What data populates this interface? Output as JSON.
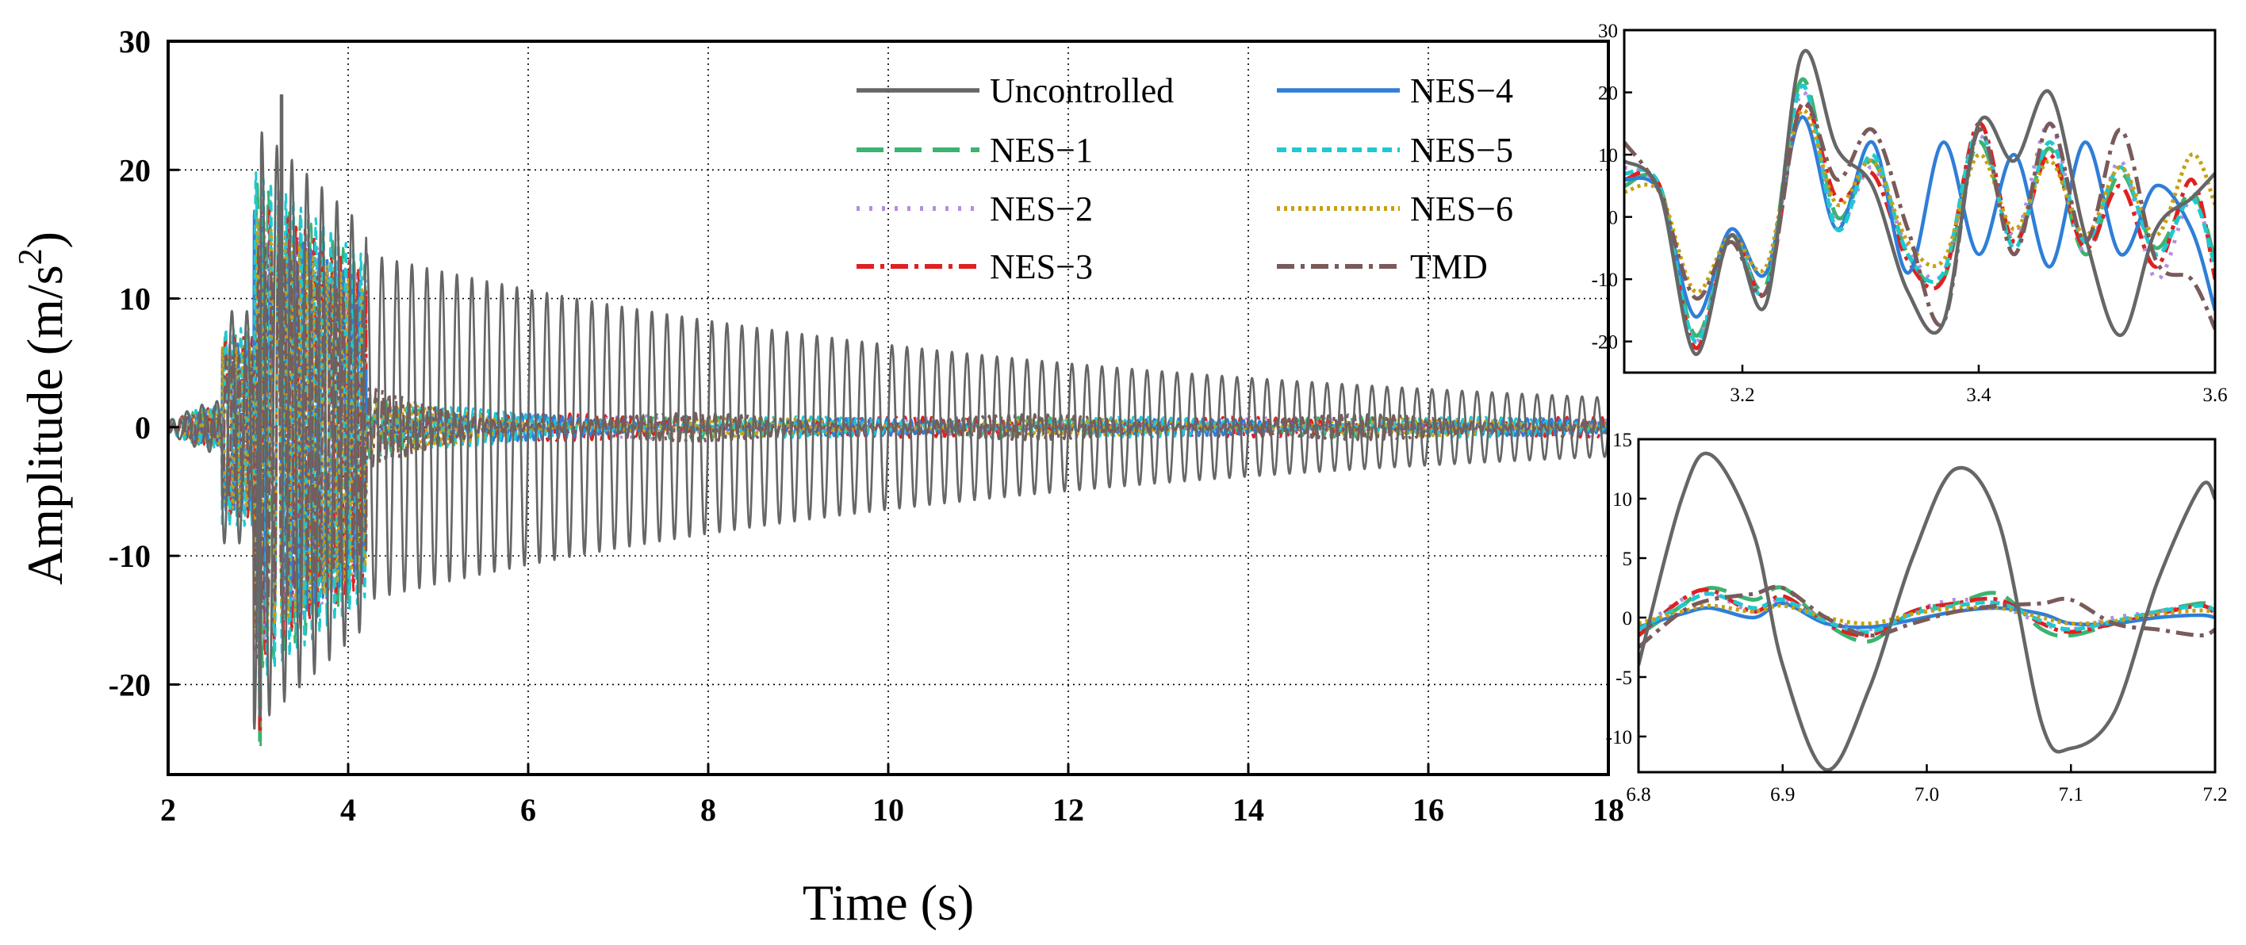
{
  "chart_data": [
    {
      "id": "main",
      "type": "line",
      "xlabel": "Time (s)",
      "ylabel_main": "Amplitude (m/s",
      "ylabel_sup": "2",
      "ylabel_close": ")",
      "xlim": [
        2,
        18
      ],
      "ylim": [
        -27,
        30
      ],
      "xticks": [
        2,
        4,
        6,
        8,
        10,
        12,
        14,
        16,
        18
      ],
      "yticks": [
        -20,
        -10,
        0,
        10,
        20,
        30
      ],
      "grid": true,
      "legend_position": "top-right",
      "series": [
        {
          "name": "Uncontrolled",
          "peak_positive": 25.8,
          "peak_negative": -22.5,
          "frequency_hz": 6.0,
          "decay_amplitude_start": 13.5,
          "decay_amplitude_end": 2.3
        },
        {
          "name": "NES−1",
          "peak_positive": 21.0,
          "peak_negative": -25.0,
          "decay_amplitude_end": 0.8
        },
        {
          "name": "NES−2",
          "peak_positive": 19.0,
          "peak_negative": -21.0,
          "decay_amplitude_end": 0.8
        },
        {
          "name": "NES−3",
          "peak_positive": 20.0,
          "peak_negative": -23.5,
          "decay_amplitude_end": 0.8
        },
        {
          "name": "NES−4",
          "peak_positive": 18.5,
          "peak_negative": -21.0,
          "decay_amplitude_end": 0.7
        },
        {
          "name": "NES−5",
          "peak_positive": 22.0,
          "peak_negative": -22.0,
          "decay_amplitude_end": 0.8
        },
        {
          "name": "NES−6",
          "peak_positive": 18.0,
          "peak_negative": -20.0,
          "decay_amplitude_end": 0.7
        },
        {
          "name": "TMD",
          "peak_positive": 16.0,
          "peak_negative": -19.5,
          "decay_amplitude_end": 1.0
        }
      ]
    },
    {
      "id": "inset-top",
      "type": "line",
      "xlim": [
        3.1,
        3.6
      ],
      "ylim": [
        -25,
        30
      ],
      "xticks": [
        3.2,
        3.4,
        3.6
      ],
      "yticks": [
        -20,
        -10,
        0,
        10,
        20,
        30
      ],
      "series": [
        {
          "name": "Uncontrolled",
          "x": [
            3.1,
            3.13,
            3.16,
            3.19,
            3.22,
            3.25,
            3.28,
            3.31,
            3.34,
            3.37,
            3.4,
            3.43,
            3.46,
            3.49,
            3.52,
            3.55,
            3.58,
            3.6
          ],
          "y": [
            9,
            4,
            -22,
            -3,
            -14,
            26,
            11,
            5,
            -12,
            -17,
            15,
            9,
            20,
            -3,
            -19,
            -2,
            3,
            7
          ]
        },
        {
          "name": "NES−1",
          "x": [
            3.1,
            3.13,
            3.16,
            3.19,
            3.22,
            3.25,
            3.28,
            3.31,
            3.34,
            3.37,
            3.4,
            3.43,
            3.46,
            3.49,
            3.52,
            3.55,
            3.58,
            3.6
          ],
          "y": [
            5,
            5,
            -19,
            -3,
            -11,
            22,
            0,
            9,
            -6,
            -10,
            12,
            -4,
            11,
            -6,
            7,
            -5,
            4,
            -7
          ]
        },
        {
          "name": "NES−2",
          "x": [
            3.1,
            3.13,
            3.16,
            3.19,
            3.22,
            3.25,
            3.28,
            3.31,
            3.34,
            3.37,
            3.4,
            3.43,
            3.46,
            3.49,
            3.52,
            3.55,
            3.58,
            3.6
          ],
          "y": [
            8,
            4,
            -20,
            -2,
            -12,
            20,
            -1,
            8,
            -5,
            -9,
            13,
            -3,
            15,
            -6,
            9,
            -10,
            3,
            -8
          ]
        },
        {
          "name": "NES−3",
          "x": [
            3.1,
            3.13,
            3.16,
            3.19,
            3.22,
            3.25,
            3.28,
            3.31,
            3.34,
            3.37,
            3.4,
            3.43,
            3.46,
            3.49,
            3.52,
            3.55,
            3.58,
            3.6
          ],
          "y": [
            6,
            5,
            -21,
            -3,
            -12,
            18,
            3,
            7,
            -7,
            -10,
            15,
            -4,
            10,
            -5,
            5,
            -8,
            6,
            -10
          ]
        },
        {
          "name": "NES−4",
          "x": [
            3.1,
            3.13,
            3.16,
            3.19,
            3.22,
            3.25,
            3.28,
            3.31,
            3.34,
            3.37,
            3.4,
            3.43,
            3.46,
            3.49,
            3.52,
            3.55,
            3.58,
            3.6
          ],
          "y": [
            6,
            4,
            -16,
            -2,
            -9,
            16,
            -2,
            12,
            -9,
            12,
            -6,
            10,
            -8,
            12,
            -6,
            5,
            -2,
            -15
          ]
        },
        {
          "name": "NES−5",
          "x": [
            3.1,
            3.13,
            3.16,
            3.19,
            3.22,
            3.25,
            3.28,
            3.31,
            3.34,
            3.37,
            3.4,
            3.43,
            3.46,
            3.49,
            3.52,
            3.55,
            3.58,
            3.6
          ],
          "y": [
            7,
            5,
            -20,
            -3,
            -12,
            21,
            -2,
            10,
            -6,
            -9,
            14,
            -5,
            12,
            -4,
            8,
            -6,
            3,
            -8
          ]
        },
        {
          "name": "NES−6",
          "x": [
            3.1,
            3.13,
            3.16,
            3.19,
            3.22,
            3.25,
            3.28,
            3.31,
            3.34,
            3.37,
            3.4,
            3.43,
            3.46,
            3.49,
            3.52,
            3.55,
            3.58,
            3.6
          ],
          "y": [
            4,
            4,
            -12,
            -3,
            -8,
            17,
            2,
            9,
            -4,
            -7,
            10,
            -2,
            9,
            -3,
            8,
            -3,
            10,
            2
          ]
        },
        {
          "name": "TMD",
          "x": [
            3.1,
            3.13,
            3.16,
            3.19,
            3.22,
            3.25,
            3.28,
            3.31,
            3.34,
            3.37,
            3.4,
            3.43,
            3.46,
            3.49,
            3.52,
            3.55,
            3.58,
            3.6
          ],
          "y": [
            12,
            4,
            -13,
            -4,
            -12,
            18,
            6,
            14,
            -2,
            -17,
            14,
            -6,
            15,
            -4,
            14,
            -7,
            -10,
            -18
          ]
        }
      ]
    },
    {
      "id": "inset-bottom",
      "type": "line",
      "xlim": [
        6.8,
        7.2
      ],
      "ylim": [
        -13,
        15
      ],
      "xticks": [
        6.8,
        6.9,
        7.0,
        7.1,
        7.2
      ],
      "yticks": [
        -10,
        -5,
        0,
        5,
        10,
        15
      ],
      "series": [
        {
          "name": "Uncontrolled",
          "x": [
            6.8,
            6.83,
            6.85,
            6.88,
            6.9,
            6.93,
            6.96,
            6.99,
            7.02,
            7.05,
            7.08,
            7.1,
            7.13,
            7.16,
            7.19,
            7.2
          ],
          "y": [
            -4,
            10,
            13.7,
            7,
            -4,
            -12.8,
            -6,
            5,
            12.5,
            8,
            -9,
            -11,
            -8,
            3,
            11,
            10
          ]
        },
        {
          "name": "NES−1",
          "x": [
            6.8,
            6.83,
            6.85,
            6.88,
            6.9,
            6.93,
            6.96,
            6.99,
            7.02,
            7.05,
            7.08,
            7.1,
            7.13,
            7.16,
            7.19,
            7.2
          ],
          "y": [
            -1.5,
            1,
            2.5,
            1.5,
            2.5,
            -0.5,
            -2,
            0.5,
            1.2,
            2,
            -1,
            -1.5,
            -0.5,
            0.5,
            1.2,
            1
          ]
        },
        {
          "name": "NES−2",
          "x": [
            6.8,
            6.83,
            6.85,
            6.88,
            6.9,
            6.93,
            6.96,
            6.99,
            7.02,
            7.05,
            7.08,
            7.1,
            7.13,
            7.16,
            7.19,
            7.2
          ],
          "y": [
            -1,
            1.5,
            2,
            0.5,
            1.5,
            0,
            -1,
            0.5,
            1.5,
            1,
            -0.5,
            -1,
            0,
            0.5,
            1,
            0.5
          ]
        },
        {
          "name": "NES−3",
          "x": [
            6.8,
            6.83,
            6.85,
            6.88,
            6.9,
            6.93,
            6.96,
            6.99,
            7.02,
            7.05,
            7.08,
            7.1,
            7.13,
            7.16,
            7.19,
            7.2
          ],
          "y": [
            -1.5,
            1.5,
            2.3,
            0.5,
            1.8,
            -0.5,
            -1.5,
            0.5,
            1.2,
            1.5,
            -0.5,
            -1.2,
            -0.5,
            0.3,
            1,
            0.3
          ]
        },
        {
          "name": "NES−4",
          "x": [
            6.8,
            6.83,
            6.85,
            6.88,
            6.9,
            6.93,
            6.96,
            6.99,
            7.02,
            7.05,
            7.08,
            7.1,
            7.13,
            7.16,
            7.19,
            7.2
          ],
          "y": [
            -0.8,
            0.3,
            0.8,
            0,
            1.2,
            -0.5,
            -0.8,
            -0.2,
            0.5,
            0.8,
            0.3,
            -0.5,
            -0.5,
            0,
            0.2,
            0
          ]
        },
        {
          "name": "NES−5",
          "x": [
            6.8,
            6.83,
            6.85,
            6.88,
            6.9,
            6.93,
            6.96,
            6.99,
            7.02,
            7.05,
            7.08,
            7.1,
            7.13,
            7.16,
            7.19,
            7.2
          ],
          "y": [
            -1,
            1,
            2,
            0.8,
            1.5,
            -0.3,
            -1.2,
            0.3,
            1,
            1.2,
            -0.3,
            -1,
            -0.3,
            0.5,
            1,
            0.6
          ]
        },
        {
          "name": "NES−6",
          "x": [
            6.8,
            6.83,
            6.85,
            6.88,
            6.9,
            6.93,
            6.96,
            6.99,
            7.02,
            7.05,
            7.08,
            7.1,
            7.13,
            7.16,
            7.19,
            7.2
          ],
          "y": [
            -0.5,
            0.5,
            1,
            0.5,
            1,
            0,
            -0.5,
            0.3,
            0.8,
            0.8,
            0,
            -0.5,
            -0.3,
            0.3,
            0.6,
            0.4
          ]
        },
        {
          "name": "TMD",
          "x": [
            6.8,
            6.83,
            6.85,
            6.88,
            6.9,
            6.93,
            6.96,
            6.99,
            7.02,
            7.05,
            7.08,
            7.1,
            7.13,
            7.16,
            7.19,
            7.2
          ],
          "y": [
            -2.5,
            0.5,
            1.5,
            2,
            2.5,
            0,
            -1.5,
            -0.5,
            0.5,
            1,
            1.2,
            1.5,
            -0.5,
            -1,
            -1.5,
            -1
          ]
        }
      ]
    }
  ],
  "styles": {
    "Uncontrolled": {
      "color": "#666666",
      "dash": "",
      "width": 4.5
    },
    "NES−1": {
      "color": "#3cb371",
      "dash": "34 14",
      "width": 5
    },
    "NES−2": {
      "color": "#b48ee0",
      "dash": "4 12",
      "width": 5
    },
    "NES−3": {
      "color": "#e02020",
      "dash": "22 8 5 8",
      "width": 5
    },
    "NES−4": {
      "color": "#2f7ed8",
      "dash": "",
      "width": 4.5
    },
    "NES−5": {
      "color": "#20c8d0",
      "dash": "12 7",
      "width": 5
    },
    "NES−6": {
      "color": "#c8a010",
      "dash": "4 5",
      "width": 5
    },
    "TMD": {
      "color": "#7a5a5a",
      "dash": "22 8 5 8",
      "width": 5
    }
  }
}
